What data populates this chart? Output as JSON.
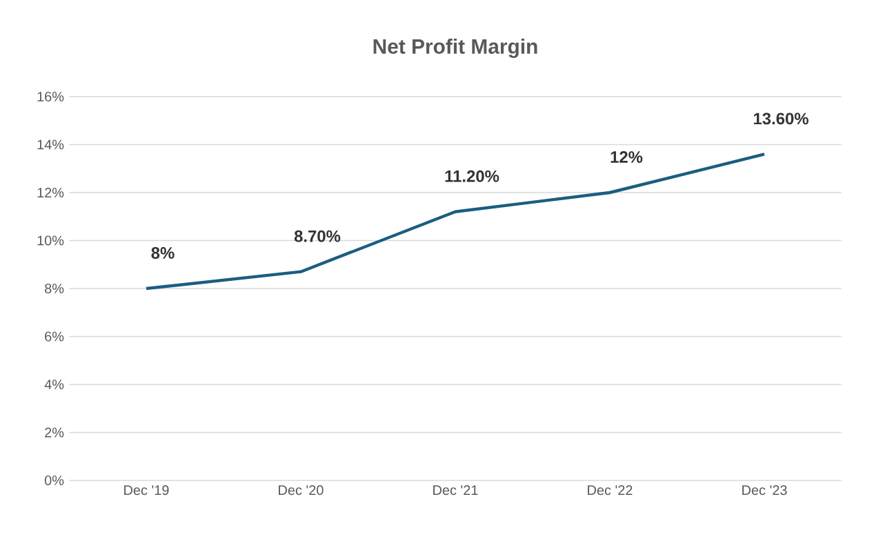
{
  "chart_data": {
    "type": "line",
    "title": "Net Profit Margin",
    "categories": [
      "Dec '19",
      "Dec '20",
      "Dec '21",
      "Dec '22",
      "Dec '23"
    ],
    "series": [
      {
        "color": "#1a5e80",
        "values": [
          8,
          8.7,
          11.2,
          12,
          13.6
        ],
        "value_labels": [
          "8%",
          "8.70%",
          "11.20%",
          "12%",
          "13.60%"
        ]
      }
    ],
    "ylim": [
      0,
      16
    ],
    "yticks": [
      {
        "value": 0,
        "label": "0%"
      },
      {
        "value": 2,
        "label": "2%"
      },
      {
        "value": 4,
        "label": "4%"
      },
      {
        "value": 6,
        "label": "6%"
      },
      {
        "value": 8,
        "label": "8%"
      },
      {
        "value": 10,
        "label": "10%"
      },
      {
        "value": 12,
        "label": "12%"
      },
      {
        "value": 14,
        "label": "14%"
      },
      {
        "value": 16,
        "label": "16%"
      }
    ],
    "grid": "y"
  }
}
